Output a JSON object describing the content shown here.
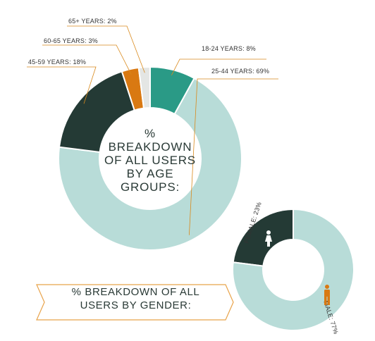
{
  "chart_data": [
    {
      "type": "pie",
      "title": "% BREAKDOWN OF ALL USERS BY AGE GROUPS:",
      "title_lines": [
        "%",
        "BREAKDOWN",
        "OF ALL USERS",
        "BY AGE",
        "GROUPS:"
      ],
      "categories": [
        "18-24 YEARS",
        "25-44 YEARS",
        "45-59 YEARS",
        "60-65 YEARS",
        "65+ YEARS"
      ],
      "values": [
        8,
        69,
        18,
        3,
        2
      ],
      "labels": [
        "18-24 YEARS: 8%",
        "25-44 YEARS: 69%",
        "45-59 YEARS: 18%",
        "60-65 YEARS: 3%",
        "65+ YEARS: 2%"
      ],
      "colors": [
        "#2a9a86",
        "#b8dcd8",
        "#243a35",
        "#d97912",
        "#e4e6e4"
      ]
    },
    {
      "type": "pie",
      "title": "% BREAKDOWN OF ALL USERS BY GENDER:",
      "title_lines": [
        "% BREAKDOWN OF ALL",
        "USERS BY GENDER:"
      ],
      "categories": [
        "FEMALE",
        "MALE"
      ],
      "values": [
        23,
        77
      ],
      "labels": [
        "FEMALE: 23%",
        "MALE: 77%"
      ],
      "colors": [
        "#243a35",
        "#b8dcd8"
      ],
      "icons": [
        "female-icon",
        "male-icon"
      ]
    }
  ],
  "colors": {
    "leader_line": "#d9891c",
    "banner_border": "#e8a34a",
    "text": "#2a3a36"
  }
}
